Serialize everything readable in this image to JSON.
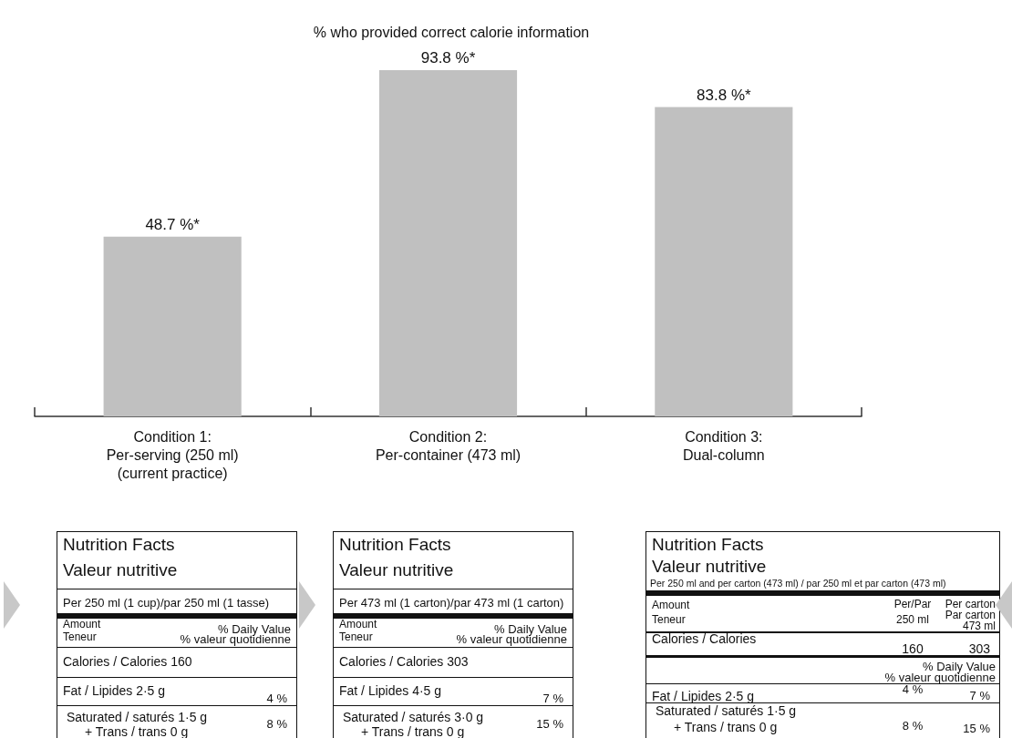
{
  "chart_data": {
    "type": "bar",
    "title": "% who provided correct calorie information",
    "categories": [
      "Condition 1:\nPer-serving (250 ml)\n(current practice)",
      "Condition 2:\nPer-container (473 ml)",
      "Condition 3:\nDual-column"
    ],
    "values": [
      48.7,
      93.8,
      83.8
    ],
    "value_labels": [
      "48.7 %*",
      "93.8 %*",
      "83.8 %*"
    ],
    "color": "#c0c0c0",
    "annotations": [
      "Nutrition Facts",
      "Valeur nutritive",
      "Per 250 ml (1 cup)/par 250 ml (1 tasse)",
      "Amount",
      "Teneur",
      "% Daily Value",
      "% valeur quotidienne",
      "Calories / Calories 160",
      "Fat / Lipides 2·5 g",
      "4 %",
      "Saturated / saturés 1·5 g",
      "+ Trans / trans 0 g",
      "8 %",
      "Nutrition Facts",
      "Valeur nutritive",
      "Per 473 ml (1 carton)/par 473 ml (1 carton)",
      "Amount",
      "Teneur",
      "% Daily Value",
      "% valeur quotidienne",
      "Calories / Calories 303",
      "Fat / Lipides 4·5 g",
      "7 %",
      "Saturated / saturés 3·0 g",
      "+ Trans / trans 0 g",
      "15 %",
      "Nutrition Facts",
      "Valeur nutritive",
      "Per 250 ml and per carton (473 ml) / par 250 ml et par carton (473 ml)",
      "Amount",
      "Teneur",
      "Per/Par",
      "250 ml",
      "Per carton",
      "Par carton",
      "473 ml",
      "Calories / Calories",
      "160",
      "303",
      "% Daily Value",
      "% valeur quotidienne",
      "Fat / Lipides 2·5 g",
      "4 %",
      "7 %",
      "Saturated / saturés 1·5 g",
      "+ Trans / trans 0 g",
      "8 %",
      "15 %"
    ]
  }
}
